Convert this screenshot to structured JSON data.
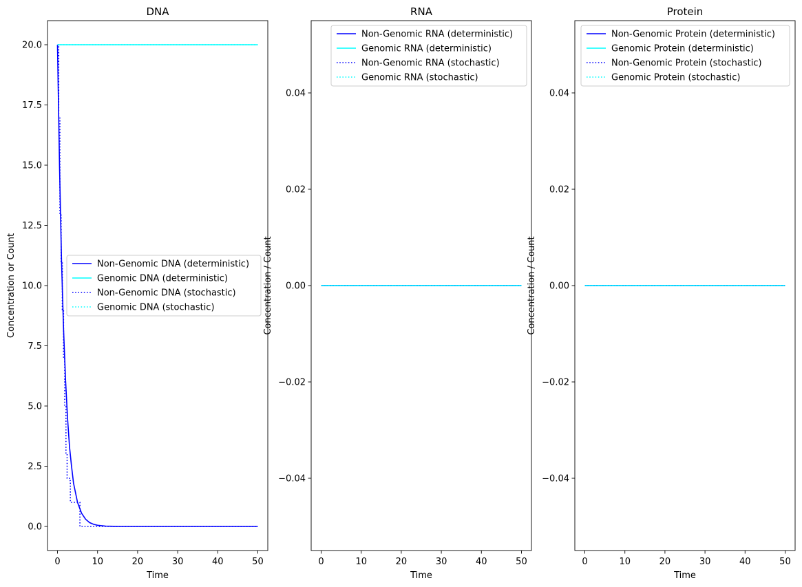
{
  "chart_data": [
    {
      "type": "line",
      "title": "DNA",
      "xlabel": "Time",
      "ylabel": "Concentration or Count",
      "xlim": [
        -2.5,
        52.5
      ],
      "ylim": [
        -1.0,
        21.0
      ],
      "xticks": [
        0,
        10,
        20,
        30,
        40,
        50
      ],
      "xtick_labels": [
        "0",
        "10",
        "20",
        "30",
        "40",
        "50"
      ],
      "yticks": [
        0,
        2.5,
        5,
        7.5,
        10,
        12.5,
        15,
        17.5,
        20
      ],
      "ytick_labels": [
        "0.0",
        "2.5",
        "5.0",
        "7.5",
        "10.0",
        "12.5",
        "15.0",
        "17.5",
        "20.0"
      ],
      "legend_position": "center-right",
      "series": [
        {
          "name": "Non-Genomic DNA (deterministic)",
          "color": "#0000ff",
          "style": "solid",
          "x": [
            0,
            0.5,
            1,
            1.5,
            2,
            2.5,
            3,
            3.5,
            4,
            5,
            6,
            7,
            8,
            9,
            10,
            12,
            14,
            16,
            20,
            30,
            40,
            50
          ],
          "y": [
            20,
            14.9,
            11.0,
            8.2,
            6.1,
            4.5,
            3.3,
            2.5,
            1.8,
            1.0,
            0.55,
            0.3,
            0.16,
            0.09,
            0.05,
            0.015,
            0.005,
            0.001,
            0,
            0,
            0,
            0
          ]
        },
        {
          "name": "Genomic DNA (deterministic)",
          "color": "#00ffff",
          "style": "solid",
          "x": [
            0,
            50
          ],
          "y": [
            20,
            20
          ]
        },
        {
          "name": "Non-Genomic DNA (stochastic)",
          "color": "#0000ff",
          "style": "dotted",
          "x": [
            0,
            0.3,
            0.3,
            0.6,
            0.6,
            0.9,
            0.9,
            1.2,
            1.2,
            1.5,
            1.5,
            1.8,
            1.8,
            2.1,
            2.1,
            2.4,
            2.4,
            3.0,
            3.0,
            3.2,
            3.2,
            5.6,
            5.6,
            50
          ],
          "y": [
            20,
            20,
            17,
            17,
            13,
            13,
            11,
            11,
            9,
            9,
            7,
            7,
            5,
            5,
            3,
            3,
            2,
            2,
            1.9,
            1.9,
            1,
            1,
            0,
            0
          ]
        },
        {
          "name": "Genomic DNA (stochastic)",
          "color": "#00ffff",
          "style": "dotted",
          "x": [
            0,
            50
          ],
          "y": [
            20,
            20
          ]
        }
      ]
    },
    {
      "type": "line",
      "title": "RNA",
      "xlabel": "Time",
      "ylabel": "Concentration / Count",
      "xlim": [
        -2.5,
        52.5
      ],
      "ylim": [
        -0.055,
        0.055
      ],
      "xticks": [
        0,
        10,
        20,
        30,
        40,
        50
      ],
      "xtick_labels": [
        "0",
        "10",
        "20",
        "30",
        "40",
        "50"
      ],
      "yticks": [
        -0.04,
        -0.02,
        0,
        0.02,
        0.04
      ],
      "ytick_labels": [
        "−0.04",
        "−0.02",
        "0.00",
        "0.02",
        "0.04"
      ],
      "legend_position": "top-right",
      "series": [
        {
          "name": "Non-Genomic RNA (deterministic)",
          "color": "#0000ff",
          "style": "solid",
          "x": [
            0,
            50
          ],
          "y": [
            0,
            0
          ]
        },
        {
          "name": "Genomic RNA (deterministic)",
          "color": "#00ffff",
          "style": "solid",
          "x": [
            0,
            50
          ],
          "y": [
            0,
            0
          ]
        },
        {
          "name": "Non-Genomic RNA (stochastic)",
          "color": "#0000ff",
          "style": "dotted",
          "x": [
            0,
            50
          ],
          "y": [
            0,
            0
          ]
        },
        {
          "name": "Genomic RNA (stochastic)",
          "color": "#00ffff",
          "style": "dotted",
          "x": [
            0,
            50
          ],
          "y": [
            0,
            0
          ]
        }
      ]
    },
    {
      "type": "line",
      "title": "Protein",
      "xlabel": "Time",
      "ylabel": "Concentration / Count",
      "xlim": [
        -2.5,
        52.5
      ],
      "ylim": [
        -0.055,
        0.055
      ],
      "xticks": [
        0,
        10,
        20,
        30,
        40,
        50
      ],
      "xtick_labels": [
        "0",
        "10",
        "20",
        "30",
        "40",
        "50"
      ],
      "yticks": [
        -0.04,
        -0.02,
        0,
        0.02,
        0.04
      ],
      "ytick_labels": [
        "−0.04",
        "−0.02",
        "0.00",
        "0.02",
        "0.04"
      ],
      "legend_position": "top-right",
      "series": [
        {
          "name": "Non-Genomic Protein (deterministic)",
          "color": "#0000ff",
          "style": "solid",
          "x": [
            0,
            50
          ],
          "y": [
            0,
            0
          ]
        },
        {
          "name": "Genomic Protein (deterministic)",
          "color": "#00ffff",
          "style": "solid",
          "x": [
            0,
            50
          ],
          "y": [
            0,
            0
          ]
        },
        {
          "name": "Non-Genomic Protein (stochastic)",
          "color": "#0000ff",
          "style": "dotted",
          "x": [
            0,
            50
          ],
          "y": [
            0,
            0
          ]
        },
        {
          "name": "Genomic Protein (stochastic)",
          "color": "#00ffff",
          "style": "dotted",
          "x": [
            0,
            50
          ],
          "y": [
            0,
            0
          ]
        }
      ]
    }
  ]
}
